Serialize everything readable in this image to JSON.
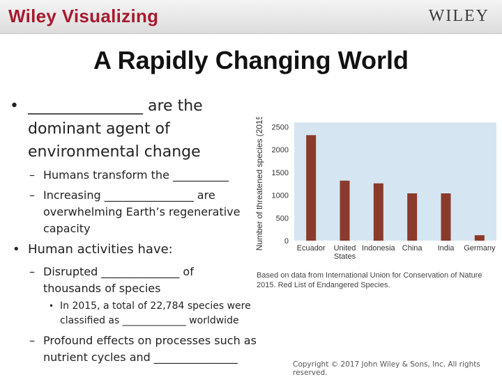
{
  "header": {
    "brand_left": "Wiley Visualizing",
    "brand_right": "WILEY"
  },
  "slide": {
    "title": "A Rapidly Changing World",
    "bullets": [
      {
        "marker": "•",
        "text": "_______________ are the dominant agent of environmental change"
      },
      {
        "marker": "–",
        "text": "Humans transform the __________"
      },
      {
        "marker": "–",
        "text": "Increasing ________________ are overwhelming Earth’s regenerative capacity"
      },
      {
        "marker": "•",
        "text": "Human activities have:"
      },
      {
        "marker": "–",
        "text": "Disrupted ______________ of thousands of species"
      },
      {
        "marker": "•",
        "text": "In 2015, a total of 22,784 species were classified as _____________ worldwide"
      },
      {
        "marker": "–",
        "text": "Profound effects on processes such as nutrient cycles and _______________"
      }
    ],
    "copyright": "Copyright © 2017 John Wiley & Sons, Inc. All rights reserved."
  },
  "chart_data": {
    "type": "bar",
    "categories": [
      "Ecuador",
      "United States",
      "Indonesia",
      "China",
      "India",
      "Germany"
    ],
    "category_labels": [
      [
        "Ecuador"
      ],
      [
        "United",
        "States"
      ],
      [
        "Indonesia"
      ],
      [
        "China"
      ],
      [
        "India"
      ],
      [
        "Germany"
      ]
    ],
    "values": [
      2320,
      1320,
      1260,
      1040,
      1040,
      120
    ],
    "ylabel": "Number of threatened species (2015)",
    "yticks": [
      0,
      500,
      1000,
      1500,
      2000,
      2500
    ],
    "ylim": [
      0,
      2600
    ],
    "grid": false,
    "bar_color": "#8b3a2c",
    "plot_background": "#d5e6f2",
    "caption": "Based on data from International Union for Conservation of Nature 2015. Red List of Endangered Species."
  }
}
